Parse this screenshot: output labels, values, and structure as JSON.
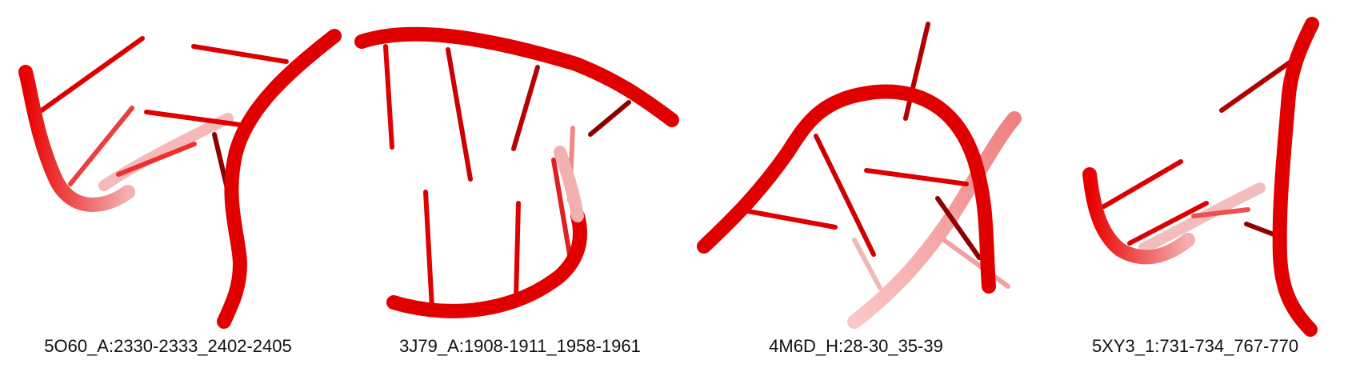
{
  "panels": [
    {
      "label": "5O60_A:2330-2333_2402-2405"
    },
    {
      "label": "3J79_A:1908-1911_1958-1961"
    },
    {
      "label": "4M6D_H:28-30_35-39"
    },
    {
      "label": "5XY3_1:731-734_767-770"
    }
  ],
  "colors": {
    "backbone": "#ee0000",
    "backbone_dark": "#a80000",
    "base": "#dd0000",
    "base_dark": "#8c0000",
    "faded": "#f4a0a0"
  }
}
